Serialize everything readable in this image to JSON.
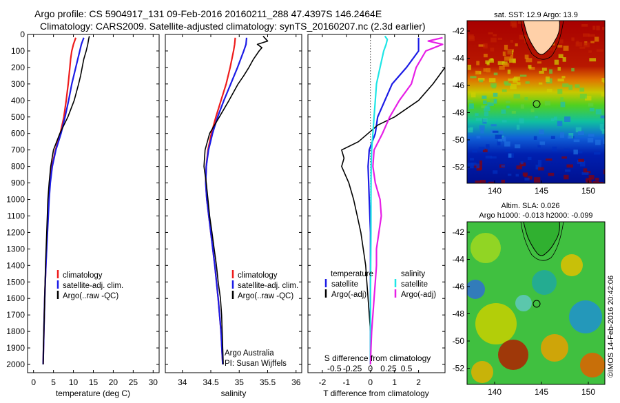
{
  "header": {
    "line1": "Argo profile: CS 5904917_131 09-Feb-2016 20160211_288 47.4397S 146.2464E",
    "line2": "Climatology: CARS2009. Satellite-adjusted climatology: synTS_20160207.nc (2.3d earlier)"
  },
  "colors": {
    "climatology": "#ee1c1c",
    "satellite": "#1c1ce6",
    "argo": "#000000",
    "sal_satellite": "#1ee6e6",
    "sal_argo": "#e61ee6"
  },
  "depth_ticks": [
    0,
    100,
    200,
    300,
    400,
    500,
    600,
    700,
    800,
    900,
    1000,
    1100,
    1200,
    1300,
    1400,
    1500,
    1600,
    1700,
    1800,
    1900,
    2000
  ],
  "chart_data": [
    {
      "type": "line",
      "name": "temperature-profile",
      "xlabel": "temperature (deg C)",
      "ylabel": "",
      "xlim": [
        -1.5,
        31.5
      ],
      "ylim": [
        2050,
        0
      ],
      "x_ticks": [
        0,
        5,
        10,
        15,
        20,
        25,
        30
      ],
      "series": [
        {
          "name": "climatology",
          "color_key": "climatology",
          "depth": [
            20,
            60,
            100,
            150,
            200,
            300,
            400,
            500,
            600,
            700,
            800,
            900,
            1000,
            1200,
            1400,
            1600,
            1800,
            2000
          ],
          "values": [
            10.6,
            10.0,
            9.6,
            9.3,
            9.1,
            8.7,
            8.2,
            7.6,
            6.7,
            5.5,
            4.6,
            4.1,
            3.8,
            3.4,
            3.1,
            2.8,
            2.6,
            2.4
          ]
        },
        {
          "name": "satellite-adj. clim.",
          "color_key": "satellite",
          "depth": [
            20,
            60,
            100,
            150,
            200,
            300,
            400,
            500,
            600,
            700,
            800,
            900,
            1000,
            1200,
            1400,
            1600,
            1800,
            2000
          ],
          "values": [
            12.6,
            12.0,
            11.6,
            11.1,
            10.6,
            9.6,
            8.8,
            7.9,
            6.9,
            5.6,
            4.7,
            4.2,
            3.9,
            3.5,
            3.1,
            2.8,
            2.6,
            2.4
          ]
        },
        {
          "name": "Argo(..raw -QC)",
          "color_key": "argo",
          "depth": [
            10,
            30,
            60,
            100,
            150,
            200,
            250,
            300,
            400,
            500,
            600,
            700,
            800,
            900,
            1000,
            1200,
            1400,
            1600,
            1800,
            2000
          ],
          "values": [
            14.0,
            13.8,
            13.6,
            13.2,
            12.6,
            12.2,
            11.8,
            11.3,
            10.2,
            8.6,
            6.6,
            5.0,
            4.3,
            3.9,
            3.6,
            3.3,
            3.0,
            2.8,
            2.6,
            2.4
          ]
        }
      ],
      "legend": {
        "placement": "center-left",
        "entries": [
          "climatology",
          "satellite-adj. clim.",
          "Argo(..raw -QC)"
        ]
      }
    },
    {
      "type": "line",
      "name": "salinity-profile",
      "xlabel": "salinity",
      "ylabel": "",
      "xlim": [
        33.7,
        36.1
      ],
      "ylim": [
        2050,
        0
      ],
      "x_ticks": [
        34,
        34.5,
        35,
        35.5,
        36
      ],
      "series": [
        {
          "name": "climatology",
          "color_key": "climatology",
          "depth": [
            20,
            60,
            100,
            200,
            300,
            400,
            500,
            600,
            700,
            800,
            900,
            1000,
            1200,
            1400,
            1600,
            1800,
            2000
          ],
          "values": [
            34.93,
            34.92,
            34.9,
            34.84,
            34.77,
            34.68,
            34.59,
            34.51,
            34.45,
            34.42,
            34.41,
            34.43,
            34.5,
            34.57,
            34.63,
            34.68,
            34.71
          ]
        },
        {
          "name": "satellite-adj. clim.",
          "color_key": "satellite",
          "depth": [
            20,
            60,
            100,
            200,
            300,
            400,
            500,
            600,
            700,
            800,
            900,
            1000,
            1200,
            1400,
            1600,
            1800,
            2000
          ],
          "values": [
            35.13,
            35.12,
            35.08,
            34.97,
            34.85,
            34.73,
            34.62,
            34.53,
            34.46,
            34.42,
            34.41,
            34.43,
            34.5,
            34.57,
            34.63,
            34.68,
            34.71
          ]
        },
        {
          "name": "Argo(..raw -QC)",
          "color_key": "argo",
          "depth": [
            10,
            40,
            60,
            80,
            100,
            150,
            200,
            250,
            300,
            400,
            500,
            600,
            700,
            800,
            900,
            1000,
            1100,
            1200,
            1300,
            1400,
            1500,
            1600,
            1700,
            1800,
            1900,
            2000
          ],
          "values": [
            35.42,
            35.5,
            35.32,
            35.4,
            35.35,
            35.25,
            35.17,
            35.08,
            34.98,
            34.82,
            34.65,
            34.48,
            34.4,
            34.38,
            34.42,
            34.45,
            34.48,
            34.52,
            34.56,
            34.6,
            34.63,
            34.67,
            34.69,
            34.7,
            34.71,
            34.72
          ]
        }
      ],
      "legend": {
        "placement": "center-right",
        "entries": [
          "climatology",
          "satellite-adj. clim.",
          "Argo(..raw -QC)"
        ]
      },
      "annotation": [
        "Argo Australia",
        "PI: Susan Wijffels"
      ]
    },
    {
      "type": "line",
      "name": "difference-profile",
      "xlabel": "T difference from climatology",
      "x2label": "S difference from climatology",
      "ylabel": "",
      "xlim": [
        -2.6,
        3.1
      ],
      "ylim": [
        2050,
        0
      ],
      "x_ticks": [
        -2,
        -1,
        0,
        1,
        2
      ],
      "x2_ticks": [
        {
          "at": -1.5,
          "label": "-0.5"
        },
        {
          "at": -0.75,
          "label": "-0.25"
        },
        {
          "at": 0,
          "label": "0"
        },
        {
          "at": 0.75,
          "label": "0.25"
        },
        {
          "at": 1.5,
          "label": "0.5"
        }
      ],
      "series": [
        {
          "name": "temperature satellite",
          "color_key": "satellite",
          "depth": [
            20,
            60,
            100,
            200,
            300,
            400,
            500,
            600,
            700,
            800,
            1000,
            1200,
            1400,
            1600,
            1800,
            2000
          ],
          "values": [
            2.0,
            2.0,
            2.0,
            1.5,
            0.9,
            0.6,
            0.3,
            0.2,
            -0.05,
            -0.1,
            -0.05,
            0.0,
            0.0,
            0.0,
            0.0,
            0.0
          ]
        },
        {
          "name": "temperature Argo(-adj)",
          "color_key": "argo",
          "depth": [
            10,
            40,
            80,
            120,
            200,
            300,
            400,
            450,
            500,
            550,
            600,
            650,
            700,
            750,
            800,
            900,
            1000,
            1100,
            1200,
            1300,
            1400,
            1500,
            1600,
            1800,
            2000
          ],
          "values": [
            3.3,
            3.6,
            3.5,
            3.3,
            3.1,
            2.6,
            2.0,
            1.5,
            1.0,
            0.3,
            -0.1,
            -0.5,
            -1.2,
            -1.1,
            -1.2,
            -0.9,
            -0.7,
            -0.55,
            -0.4,
            -0.3,
            -0.2,
            -0.15,
            -0.1,
            0.0,
            0.0
          ]
        },
        {
          "name": "salinity satellite",
          "color_key": "sal_satellite",
          "depth": [
            10,
            30,
            60,
            100,
            200,
            300,
            400,
            500,
            600,
            700,
            800,
            1000,
            1200,
            1400,
            1600,
            1800,
            2000
          ],
          "values": [
            0.6,
            0.7,
            0.65,
            0.55,
            0.4,
            0.25,
            0.2,
            0.15,
            0.1,
            0.05,
            0.03,
            0.02,
            0.02,
            0.01,
            0.0,
            0.0,
            0.0
          ]
        },
        {
          "name": "salinity Argo(-adj)",
          "color_key": "sal_argo",
          "depth": [
            20,
            40,
            60,
            100,
            200,
            300,
            400,
            500,
            600,
            700,
            800,
            900,
            1000,
            1100,
            1200,
            1300,
            1400,
            1500,
            1600,
            1700,
            1800,
            1900,
            2000
          ],
          "values": [
            3.0,
            2.4,
            3.0,
            2.3,
            1.9,
            1.7,
            1.2,
            0.8,
            0.5,
            0.15,
            0.1,
            0.2,
            0.4,
            0.45,
            0.35,
            0.25,
            0.25,
            0.2,
            0.15,
            0.1,
            0.05,
            0.02,
            0.0
          ]
        }
      ],
      "legend": {
        "placement": "center",
        "entries": [
          "temperature",
          "satellite",
          "Argo(-adj)",
          "salinity",
          "satellite",
          "Argo(-adj)"
        ]
      }
    }
  ],
  "maps": {
    "sst": {
      "title": "sat. SST: 12.9 Argo: 13.9",
      "lat_ticks": [
        "-42",
        "-44",
        "-46",
        "-48",
        "-50",
        "-52"
      ],
      "lon_ticks": [
        "140",
        "145",
        "150"
      ]
    },
    "sla": {
      "title1": "Altim. SLA: 0.026",
      "title2": "Argo h1000: -0.013 h2000: -0.099",
      "lat_ticks": [
        "-42",
        "-44",
        "-46",
        "-48",
        "-50",
        "-52"
      ],
      "lon_ticks": [
        "140",
        "145",
        "150"
      ]
    }
  },
  "credit": "©IMOS 14-Feb-2016 20:42:06"
}
